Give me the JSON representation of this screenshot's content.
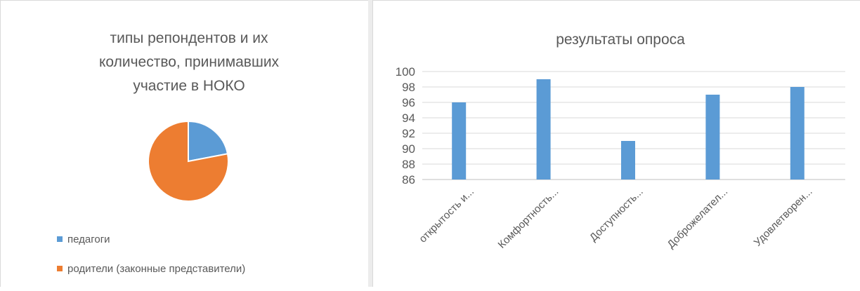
{
  "chart_data": [
    {
      "type": "pie",
      "title": "типы репондентов и их количество, принимавших участие в НОКО",
      "title_lines": [
        "типы репондентов и их",
        "количество, принимавших",
        "участие в НОКО"
      ],
      "slices": [
        {
          "label": "педагоги",
          "value": 22,
          "color": "#5B9BD5"
        },
        {
          "label": "родители (законные представители)",
          "value": 78,
          "color": "#ED7D31"
        }
      ],
      "legend_position": "bottom-left"
    },
    {
      "type": "bar",
      "title": "результаты опроса",
      "categories": [
        "открытость и...",
        "Комфортность...",
        "Доступность...",
        "Доброжелател...",
        "Удовлетворен..."
      ],
      "values": [
        96,
        99,
        91,
        97,
        98
      ],
      "ylim": [
        86,
        100
      ],
      "yticks": [
        86,
        88,
        90,
        92,
        94,
        96,
        98,
        100
      ],
      "grid": true,
      "bar_color": "#5B9BD5",
      "xlabel": "",
      "ylabel": ""
    }
  ]
}
